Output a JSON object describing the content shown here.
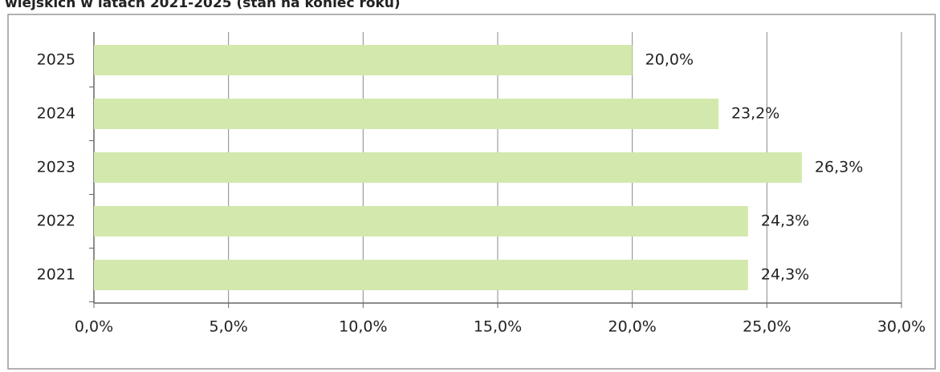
{
  "chart_data": {
    "type": "bar",
    "orientation": "horizontal",
    "title": "wiejskich w latach 2021-2025 (stan na koniec roku)",
    "categories": [
      "2025",
      "2024",
      "2023",
      "2022",
      "2021"
    ],
    "values": [
      20.0,
      23.2,
      26.3,
      24.3,
      24.3
    ],
    "value_labels": [
      "20,0%",
      "23,2%",
      "26,3%",
      "24,3%",
      "24,3%"
    ],
    "color": "#d3e8ad",
    "xlim": [
      0,
      30
    ],
    "xticks": [
      {
        "value": 0,
        "label": "0,0%"
      },
      {
        "value": 5,
        "label": "5,0%"
      },
      {
        "value": 10,
        "label": "10,0%"
      },
      {
        "value": 15,
        "label": "15,0%"
      },
      {
        "value": 20,
        "label": "20,0%"
      },
      {
        "value": 25,
        "label": "25,0%"
      },
      {
        "value": 30,
        "label": "30,0%"
      }
    ],
    "grid": true
  }
}
